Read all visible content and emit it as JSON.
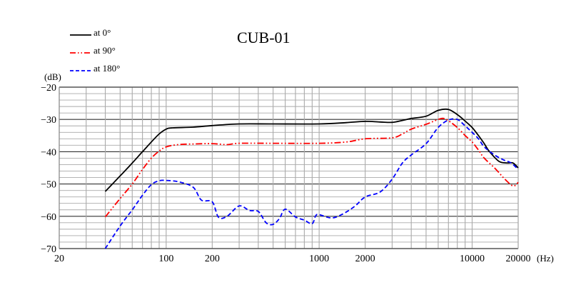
{
  "chart_data": {
    "type": "line",
    "title": "CUB-01",
    "xlabel": "(Hz)",
    "ylabel": "(dB)",
    "xscale": "log",
    "xlim": [
      20,
      20000
    ],
    "ylim": [
      -70,
      -20
    ],
    "x_tick_labels": [
      "20",
      "100",
      "200",
      "1000",
      "2000",
      "10000",
      "20000"
    ],
    "x_ticks": [
      20,
      100,
      200,
      1000,
      2000,
      10000,
      20000
    ],
    "y_tick_labels": [
      "-20",
      "-30",
      "-40",
      "-50",
      "-60",
      "-70"
    ],
    "y_ticks": [
      -20,
      -30,
      -40,
      -50,
      -60,
      -70
    ],
    "grid": true,
    "legend_position": "top-left",
    "series": [
      {
        "name": "at 0°",
        "color": "#000000",
        "style": "solid",
        "points": [
          [
            40,
            -52.3
          ],
          [
            50,
            -47.5
          ],
          [
            60,
            -43.5
          ],
          [
            70,
            -40
          ],
          [
            80,
            -37
          ],
          [
            90,
            -34.5
          ],
          [
            100,
            -33
          ],
          [
            110,
            -32.6
          ],
          [
            150,
            -32.4
          ],
          [
            200,
            -31.9
          ],
          [
            300,
            -31.4
          ],
          [
            500,
            -31.4
          ],
          [
            1000,
            -31.4
          ],
          [
            1500,
            -31
          ],
          [
            2000,
            -30.6
          ],
          [
            2500,
            -30.8
          ],
          [
            3000,
            -30.9
          ],
          [
            3500,
            -30.3
          ],
          [
            4000,
            -29.7
          ],
          [
            5000,
            -29
          ],
          [
            6000,
            -27.2
          ],
          [
            7000,
            -26.9
          ],
          [
            8000,
            -28.5
          ],
          [
            9000,
            -30.5
          ],
          [
            10000,
            -32.5
          ],
          [
            11000,
            -35
          ],
          [
            12000,
            -37.5
          ],
          [
            13000,
            -40
          ],
          [
            15000,
            -43
          ],
          [
            17000,
            -43.5
          ],
          [
            18500,
            -43.5
          ],
          [
            20000,
            -45
          ]
        ]
      },
      {
        "name": "at 90°",
        "color": "#ff0000",
        "style": "dash-dot-dot",
        "points": [
          [
            40,
            -60.2
          ],
          [
            50,
            -54.5
          ],
          [
            60,
            -50
          ],
          [
            70,
            -45.5
          ],
          [
            80,
            -42
          ],
          [
            90,
            -39.8
          ],
          [
            100,
            -38.5
          ],
          [
            120,
            -37.8
          ],
          [
            150,
            -37.6
          ],
          [
            200,
            -37.5
          ],
          [
            250,
            -37.8
          ],
          [
            300,
            -37.4
          ],
          [
            500,
            -37.4
          ],
          [
            1000,
            -37.4
          ],
          [
            1500,
            -37
          ],
          [
            2000,
            -36
          ],
          [
            3000,
            -35.7
          ],
          [
            3500,
            -34.5
          ],
          [
            4000,
            -33
          ],
          [
            5000,
            -31.5
          ],
          [
            6000,
            -30
          ],
          [
            6500,
            -29.7
          ],
          [
            7000,
            -30.4
          ],
          [
            8000,
            -32.5
          ],
          [
            9000,
            -35
          ],
          [
            10000,
            -37
          ],
          [
            11000,
            -39.5
          ],
          [
            12000,
            -42
          ],
          [
            14000,
            -45
          ],
          [
            16000,
            -48
          ],
          [
            18000,
            -50.3
          ],
          [
            19000,
            -50.5
          ],
          [
            20000,
            -49.5
          ]
        ]
      },
      {
        "name": "at 180°",
        "color": "#0000ff",
        "style": "dashed",
        "points": [
          [
            40,
            -70
          ],
          [
            50,
            -63
          ],
          [
            60,
            -58
          ],
          [
            70,
            -53.5
          ],
          [
            80,
            -50.2
          ],
          [
            90,
            -49
          ],
          [
            100,
            -48.9
          ],
          [
            120,
            -49.3
          ],
          [
            150,
            -51
          ],
          [
            170,
            -55
          ],
          [
            200,
            -55.5
          ],
          [
            220,
            -60.3
          ],
          [
            250,
            -60
          ],
          [
            300,
            -56.8
          ],
          [
            350,
            -58.2
          ],
          [
            400,
            -58.5
          ],
          [
            450,
            -62
          ],
          [
            500,
            -62.5
          ],
          [
            550,
            -60.7
          ],
          [
            600,
            -57.8
          ],
          [
            700,
            -60.2
          ],
          [
            800,
            -61.2
          ],
          [
            900,
            -62.3
          ],
          [
            950,
            -59.8
          ],
          [
            1000,
            -59.5
          ],
          [
            1200,
            -60.5
          ],
          [
            1400,
            -59.5
          ],
          [
            1700,
            -57
          ],
          [
            2000,
            -54
          ],
          [
            2500,
            -52.5
          ],
          [
            3000,
            -48.5
          ],
          [
            3500,
            -43.5
          ],
          [
            4000,
            -41
          ],
          [
            5000,
            -37.5
          ],
          [
            6000,
            -32.5
          ],
          [
            7000,
            -30.2
          ],
          [
            8000,
            -30
          ],
          [
            9000,
            -32
          ],
          [
            10000,
            -34
          ],
          [
            11000,
            -36
          ],
          [
            12000,
            -38.5
          ],
          [
            14000,
            -41
          ],
          [
            16000,
            -42.5
          ],
          [
            18000,
            -43.5
          ],
          [
            20000,
            -45.5
          ]
        ]
      }
    ]
  },
  "legend": {
    "items": [
      {
        "label": "at 0°"
      },
      {
        "label": "at 90°"
      },
      {
        "label": "at 180°"
      }
    ]
  }
}
